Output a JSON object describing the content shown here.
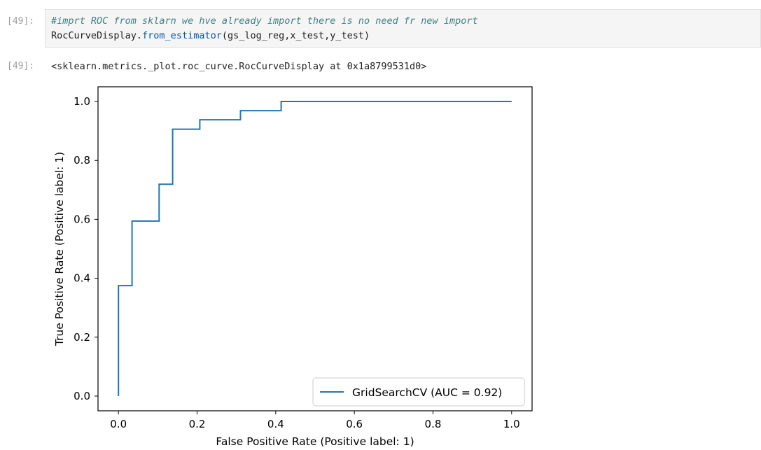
{
  "input_cell": {
    "prompt": "[49]:",
    "line1_comment": "#imprt ROC from sklarn we hve already import there is no need fr new import",
    "line2_obj": "RocCurveDisplay.",
    "line2_method": "from_estimator",
    "line2_args": "(gs_log_reg,x_test,y_test)"
  },
  "output_cell": {
    "prompt": "[49]:",
    "text": "<sklearn.metrics._plot.roc_curve.RocCurveDisplay at 0x1a8799531d0>"
  },
  "chart_data": {
    "type": "line",
    "xlabel": "False Positive Rate (Positive label: 1)",
    "ylabel": "True Positive Rate (Positive label: 1)",
    "xlim": [
      -0.052,
      1.052
    ],
    "ylim": [
      -0.05,
      1.05
    ],
    "xticks": [
      0.0,
      0.2,
      0.4,
      0.6,
      0.8,
      1.0
    ],
    "yticks": [
      0.0,
      0.2,
      0.4,
      0.6,
      0.8,
      1.0
    ],
    "xtick_labels": [
      "0.0",
      "0.2",
      "0.4",
      "0.6",
      "0.8",
      "1.0"
    ],
    "ytick_labels": [
      "0.0",
      "0.2",
      "0.4",
      "0.6",
      "0.8",
      "1.0"
    ],
    "grid": false,
    "legend_position": "lower-right",
    "series": [
      {
        "name": "GridSearchCV (AUC = 0.92)",
        "color": "#1f77b4",
        "x": [
          0.0,
          0.0,
          0.0345,
          0.0345,
          0.1034,
          0.1034,
          0.1379,
          0.1379,
          0.2069,
          0.2069,
          0.3103,
          0.3103,
          0.4138,
          0.4138,
          1.0
        ],
        "y": [
          0.0,
          0.375,
          0.375,
          0.594,
          0.594,
          0.719,
          0.719,
          0.906,
          0.906,
          0.938,
          0.938,
          0.969,
          0.969,
          1.0,
          1.0
        ]
      }
    ]
  }
}
